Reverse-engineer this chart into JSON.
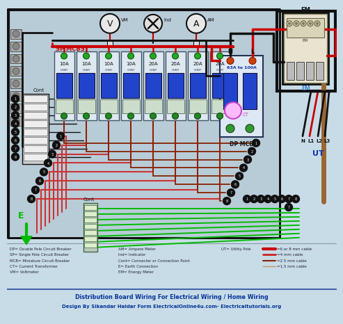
{
  "title1": "Distribution Board Wiring For Electrical Wiring / Home Wiring",
  "title2": "Design By Sikandar Haidar Form ElectricalOnline4u.com- Electricaltutorials.org",
  "bg_color": "#c8dce8",
  "board_bg": "#b8ccd8",
  "legend_items": [
    {
      "label": "=6 or 8 mm cable",
      "color": "#cc0000",
      "lw": 3.0
    },
    {
      "label": "=4 mm cable",
      "color": "#cc2222",
      "lw": 2.0
    },
    {
      "label": "=2.5 mm cable",
      "color": "#882200",
      "lw": 1.5
    },
    {
      "label": "=1.5 mm cable",
      "color": "#bb9966",
      "lw": 1.0
    }
  ],
  "left_legend": [
    "DP= Double Pole Circuit Breaker",
    "SP= Single Pole Circuit Breaker",
    "MCB= Miniature Circuit Breaker",
    "CT= Current Transformer",
    "VM= Voltmeter"
  ],
  "mid_legend": [
    "AM= Ampere Meter",
    "Ind= Indicator",
    "Cont= Connecter or Connection Point",
    "E= Earth Connection",
    "EM= Energy Meter"
  ],
  "right_abbr": "UT= Utility Pole",
  "mcb_labels": [
    "10A",
    "10A",
    "10A",
    "10A",
    "20A",
    "20A",
    "20A",
    "20A"
  ],
  "dp_label": "63A to 100A",
  "dp_mcb_label": "DP MCB",
  "sp_mcbs_label": "SP MCBS",
  "cont_label": "Cont",
  "em_label": "EM",
  "ut_label": "UT",
  "e_label": "E",
  "vm_label": "VM",
  "am_label": "AM",
  "ind_label": "Ind",
  "n_label": "N",
  "l_label": "L",
  "n2_label": "N",
  "l1_label": "L1",
  "l2_label": "L2",
  "l3_label": "L3",
  "ct_label": "CT"
}
